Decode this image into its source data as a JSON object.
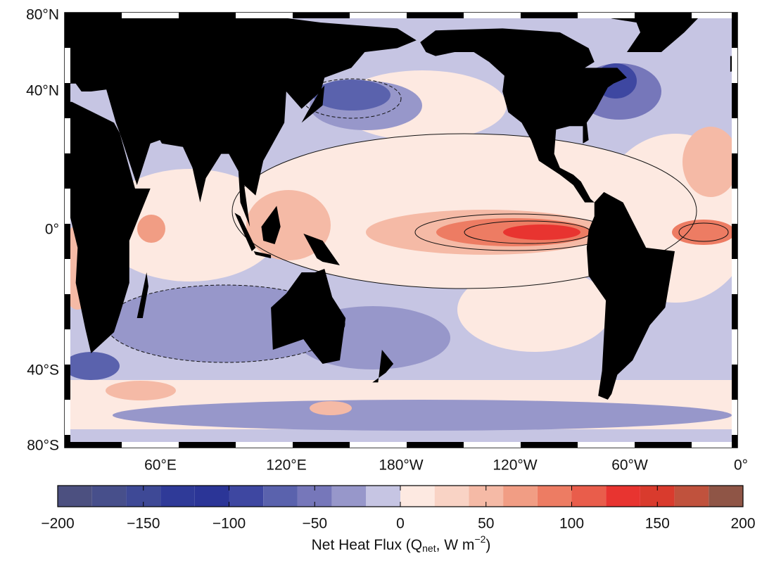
{
  "map": {
    "lat_labels": [
      "80°N",
      "40°N",
      "0°",
      "40°S",
      "80°S"
    ],
    "lon_labels": [
      "60°E",
      "120°E",
      "180°W",
      "120°W",
      "60°W",
      "0°"
    ],
    "colorbar": {
      "range": [
        -200,
        200
      ],
      "bins": [
        -200,
        -180,
        -160,
        -140,
        -120,
        -100,
        -80,
        -60,
        -40,
        -20,
        0,
        20,
        40,
        60,
        80,
        100,
        120,
        140,
        160,
        180,
        200
      ],
      "colors": [
        "#4c5080",
        "#474f8b",
        "#3e4996",
        "#2f3a98",
        "#2b3597",
        "#3e47a1",
        "#5a62ad",
        "#7677ba",
        "#9797ca",
        "#c6c5e3",
        "#fde9e1",
        "#f9d3c5",
        "#f5baa6",
        "#f19d84",
        "#ed7c63",
        "#e95d4b",
        "#e83430",
        "#d93b2d",
        "#c0523d",
        "#8f5546"
      ],
      "ticks": [
        {
          "value": -200,
          "label": "−200"
        },
        {
          "value": -150,
          "label": "−150"
        },
        {
          "value": -100,
          "label": "−100"
        },
        {
          "value": -50,
          "label": "−50"
        },
        0,
        50,
        100,
        150,
        200
      ],
      "label": {
        "main": "Net Heat Flux (Q",
        "sub": "net",
        "mid": ", W m",
        "sup": "−2",
        "end": ")"
      }
    }
  }
}
